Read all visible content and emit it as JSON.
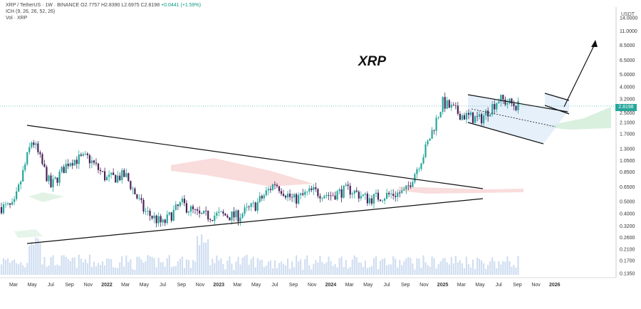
{
  "header": {
    "symbol_line": "XRP / TetherUS · 1W · BINANCE",
    "ohlc": "O2.7757 H2.8390 L2.6975 C2.8198",
    "change": "+0.0441 (+1.59%)",
    "indicator_ichimoku": "ICH (9, 26, 26, 52, 26)",
    "indicator_volume": "Vol · XRP"
  },
  "annotation": {
    "title": "XRP"
  },
  "price_axis": {
    "unit": "USDT",
    "ticks": [
      "14.0000",
      "11.0000",
      "8.5000",
      "6.5000",
      "5.0000",
      "4.0000",
      "3.2000",
      "2.5000",
      "2.1000",
      "1.7000",
      "1.3000",
      "1.0500",
      "0.8500",
      "0.6500",
      "0.5000",
      "0.4000",
      "0.3200",
      "0.2600",
      "0.2100",
      "0.1700",
      "0.1350"
    ],
    "current_price": "2.8198"
  },
  "time_axis": {
    "labels": [
      "Mar",
      "May",
      "Jul",
      "Sep",
      "Nov",
      "2022",
      "Mar",
      "May",
      "Jul",
      "Sep",
      "Nov",
      "2023",
      "Mar",
      "May",
      "Jul",
      "Sep",
      "Nov",
      "2024",
      "Mar",
      "May",
      "Jul",
      "Sep",
      "Nov",
      "2025",
      "Mar",
      "May",
      "Jul",
      "Sep",
      "Nov",
      "2026"
    ]
  },
  "colors": {
    "up": "#26a69a",
    "down": "#4a235a",
    "cloud_red": "#f7d3d3",
    "cloud_green": "#d5eedc",
    "channel_fill": "#dbe9f8",
    "trendline": "#111111",
    "volume": "#c8d8ee",
    "price_line": "#26a69a"
  },
  "chart_data": {
    "type": "candlestick",
    "title": "",
    "y_scale": "log",
    "ylim": [
      0.125,
      17
    ],
    "x": [
      "2021-03",
      "2021-05",
      "2021-07",
      "2021-09",
      "2021-11",
      "2022-01",
      "2022-03",
      "2022-05",
      "2022-07",
      "2022-09",
      "2022-11",
      "2023-01",
      "2023-03",
      "2023-05",
      "2023-07",
      "2023-09",
      "2023-11",
      "2024-01",
      "2024-03",
      "2024-05",
      "2024-07",
      "2024-09",
      "2024-11",
      "2025-01",
      "2025-03",
      "2025-05",
      "2025-07",
      "2025-09"
    ],
    "close": [
      0.45,
      1.55,
      0.65,
      1.05,
      1.1,
      0.75,
      0.8,
      0.42,
      0.33,
      0.48,
      0.38,
      0.39,
      0.38,
      0.47,
      0.7,
      0.51,
      0.6,
      0.56,
      0.62,
      0.52,
      0.56,
      0.59,
      1.2,
      3.0,
      2.4,
      2.2,
      3.2,
      2.82
    ],
    "patterns": [
      {
        "name": "Symmetrical triangle",
        "from": "2021-04",
        "to": "2024-10"
      },
      {
        "name": "Descending channel (bull flag)",
        "from": "2024-12",
        "to": "2025-06"
      },
      {
        "name": "Flag",
        "from": "2025-07",
        "to": "2025-09"
      }
    ]
  }
}
